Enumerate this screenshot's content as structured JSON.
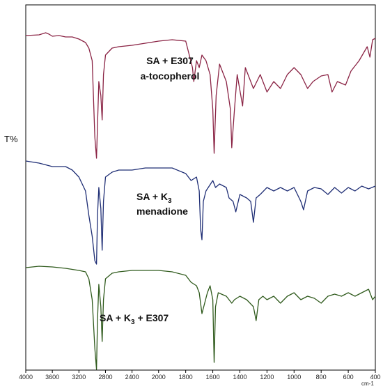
{
  "chart_data": {
    "type": "line",
    "title": "",
    "ylabel": "T%",
    "xlabel": "",
    "x_unit": "cm-1",
    "xlim": [
      4000,
      400
    ],
    "x_reversed": true,
    "x_ticks": [
      4000,
      3600,
      3200,
      2800,
      2400,
      2000,
      1800,
      1600,
      1400,
      1200,
      1000,
      800,
      600,
      400
    ],
    "grid": false,
    "legend": "none",
    "annotations": [
      {
        "key": "top_line1",
        "text": "SA + E307"
      },
      {
        "key": "top_line2",
        "text": "a-tocopherol"
      },
      {
        "key": "mid_line1",
        "text": "SA + K"
      },
      {
        "key": "mid_sub",
        "text": "3"
      },
      {
        "key": "mid_line2",
        "text": "menadione"
      },
      {
        "key": "bot_pre",
        "text": "SA + K"
      },
      {
        "key": "bot_sub",
        "text": "3"
      },
      {
        "key": "bot_post",
        "text": " + E307"
      }
    ],
    "series": [
      {
        "color": "#8a2344",
        "offset": 40,
        "points": [
          [
            4000,
            4
          ],
          [
            3800,
            3
          ],
          [
            3700,
            0
          ],
          [
            3650,
            2
          ],
          [
            3600,
            5
          ],
          [
            3500,
            4
          ],
          [
            3400,
            6
          ],
          [
            3300,
            6
          ],
          [
            3200,
            9
          ],
          [
            3100,
            14
          ],
          [
            3050,
            22
          ],
          [
            3000,
            40
          ],
          [
            2960,
            150
          ],
          [
            2935,
            180
          ],
          [
            2900,
            70
          ],
          [
            2870,
            90
          ],
          [
            2850,
            125
          ],
          [
            2830,
            60
          ],
          [
            2800,
            32
          ],
          [
            2700,
            22
          ],
          [
            2600,
            20
          ],
          [
            2400,
            18
          ],
          [
            2200,
            15
          ],
          [
            2000,
            12
          ],
          [
            1900,
            10
          ],
          [
            1800,
            12
          ],
          [
            1750,
            50
          ],
          [
            1740,
            70
          ],
          [
            1720,
            40
          ],
          [
            1700,
            50
          ],
          [
            1680,
            32
          ],
          [
            1650,
            40
          ],
          [
            1620,
            60
          ],
          [
            1600,
            110
          ],
          [
            1590,
            173
          ],
          [
            1575,
            90
          ],
          [
            1550,
            45
          ],
          [
            1500,
            70
          ],
          [
            1470,
            110
          ],
          [
            1460,
            165
          ],
          [
            1440,
            110
          ],
          [
            1420,
            60
          ],
          [
            1380,
            105
          ],
          [
            1360,
            50
          ],
          [
            1300,
            80
          ],
          [
            1250,
            60
          ],
          [
            1200,
            85
          ],
          [
            1150,
            70
          ],
          [
            1100,
            80
          ],
          [
            1050,
            60
          ],
          [
            1000,
            50
          ],
          [
            950,
            60
          ],
          [
            900,
            80
          ],
          [
            860,
            70
          ],
          [
            800,
            62
          ],
          [
            750,
            60
          ],
          [
            720,
            85
          ],
          [
            680,
            70
          ],
          [
            620,
            75
          ],
          [
            580,
            55
          ],
          [
            520,
            40
          ],
          [
            460,
            20
          ],
          [
            440,
            35
          ],
          [
            420,
            10
          ],
          [
            400,
            8
          ]
        ]
      },
      {
        "color": "#1f2e75",
        "offset": 222,
        "points": [
          [
            4000,
            2
          ],
          [
            3800,
            5
          ],
          [
            3600,
            10
          ],
          [
            3400,
            10
          ],
          [
            3300,
            15
          ],
          [
            3200,
            25
          ],
          [
            3100,
            45
          ],
          [
            3050,
            80
          ],
          [
            3000,
            110
          ],
          [
            2960,
            145
          ],
          [
            2935,
            150
          ],
          [
            2920,
            80
          ],
          [
            2900,
            40
          ],
          [
            2870,
            70
          ],
          [
            2850,
            130
          ],
          [
            2830,
            60
          ],
          [
            2800,
            25
          ],
          [
            2700,
            18
          ],
          [
            2600,
            15
          ],
          [
            2400,
            15
          ],
          [
            2200,
            12
          ],
          [
            2000,
            12
          ],
          [
            1900,
            12
          ],
          [
            1800,
            20
          ],
          [
            1760,
            30
          ],
          [
            1720,
            25
          ],
          [
            1700,
            45
          ],
          [
            1690,
            100
          ],
          [
            1680,
            115
          ],
          [
            1670,
            60
          ],
          [
            1650,
            45
          ],
          [
            1600,
            30
          ],
          [
            1580,
            40
          ],
          [
            1550,
            35
          ],
          [
            1500,
            40
          ],
          [
            1480,
            55
          ],
          [
            1450,
            60
          ],
          [
            1430,
            75
          ],
          [
            1400,
            50
          ],
          [
            1350,
            55
          ],
          [
            1320,
            60
          ],
          [
            1300,
            90
          ],
          [
            1280,
            55
          ],
          [
            1250,
            50
          ],
          [
            1200,
            40
          ],
          [
            1150,
            45
          ],
          [
            1100,
            40
          ],
          [
            1050,
            45
          ],
          [
            1000,
            40
          ],
          [
            950,
            60
          ],
          [
            930,
            72
          ],
          [
            900,
            45
          ],
          [
            850,
            40
          ],
          [
            800,
            42
          ],
          [
            750,
            50
          ],
          [
            700,
            40
          ],
          [
            650,
            48
          ],
          [
            600,
            40
          ],
          [
            550,
            45
          ],
          [
            500,
            38
          ],
          [
            450,
            42
          ],
          [
            400,
            38
          ]
        ]
      },
      {
        "color": "#2f5a1c",
        "offset": 373,
        "points": [
          [
            4000,
            4
          ],
          [
            3800,
            2
          ],
          [
            3600,
            3
          ],
          [
            3400,
            5
          ],
          [
            3200,
            8
          ],
          [
            3100,
            10
          ],
          [
            3050,
            20
          ],
          [
            3000,
            50
          ],
          [
            2960,
            120
          ],
          [
            2935,
            150
          ],
          [
            2920,
            80
          ],
          [
            2900,
            28
          ],
          [
            2870,
            60
          ],
          [
            2850,
            110
          ],
          [
            2830,
            50
          ],
          [
            2800,
            20
          ],
          [
            2700,
            12
          ],
          [
            2600,
            10
          ],
          [
            2400,
            8
          ],
          [
            2200,
            8
          ],
          [
            2000,
            8
          ],
          [
            1900,
            10
          ],
          [
            1800,
            15
          ],
          [
            1760,
            25
          ],
          [
            1720,
            30
          ],
          [
            1700,
            40
          ],
          [
            1680,
            70
          ],
          [
            1660,
            55
          ],
          [
            1640,
            40
          ],
          [
            1620,
            30
          ],
          [
            1600,
            50
          ],
          [
            1590,
            140
          ],
          [
            1580,
            60
          ],
          [
            1560,
            40
          ],
          [
            1500,
            45
          ],
          [
            1460,
            55
          ],
          [
            1440,
            50
          ],
          [
            1400,
            45
          ],
          [
            1350,
            50
          ],
          [
            1300,
            60
          ],
          [
            1280,
            80
          ],
          [
            1260,
            50
          ],
          [
            1230,
            45
          ],
          [
            1200,
            50
          ],
          [
            1150,
            45
          ],
          [
            1100,
            55
          ],
          [
            1050,
            45
          ],
          [
            1000,
            40
          ],
          [
            950,
            50
          ],
          [
            900,
            45
          ],
          [
            850,
            48
          ],
          [
            800,
            55
          ],
          [
            750,
            45
          ],
          [
            700,
            42
          ],
          [
            650,
            45
          ],
          [
            600,
            40
          ],
          [
            550,
            45
          ],
          [
            500,
            40
          ],
          [
            450,
            35
          ],
          [
            420,
            50
          ],
          [
            400,
            45
          ]
        ]
      }
    ]
  }
}
